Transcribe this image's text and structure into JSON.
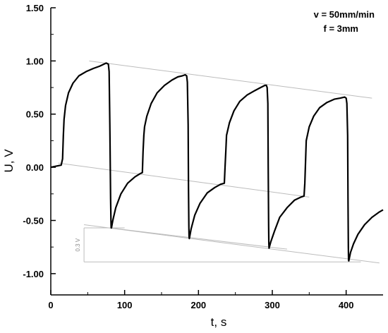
{
  "chart_data": {
    "type": "line",
    "xlabel": "t, s",
    "ylabel": "U, V",
    "xlim": [
      0,
      450
    ],
    "ylim": [
      -1.2,
      1.5
    ],
    "xticks": [
      0,
      100,
      200,
      300,
      400
    ],
    "yticks": [
      -1.0,
      -0.5,
      0.0,
      0.5,
      1.0,
      1.5
    ],
    "ytick_labels": [
      "-1.00",
      "-0.50",
      "0.00",
      "0.50",
      "1.00",
      "1.50"
    ],
    "grid": false,
    "annotations": {
      "parameters": [
        "v = 50mm/min",
        "f = 3mm"
      ],
      "drop_label": "0.3 V"
    },
    "series": [
      {
        "x": [
          0,
          14,
          16,
          17,
          18,
          20,
          24,
          30,
          38,
          48,
          58,
          66,
          72,
          75,
          78,
          79,
          80,
          81,
          81.5,
          81.8,
          82.2,
          84,
          88,
          95,
          104,
          114,
          121,
          124,
          125,
          126,
          127,
          130,
          136,
          144,
          154,
          164,
          172,
          178,
          182,
          184,
          185,
          186,
          186.5,
          187,
          187.3,
          187.6,
          190,
          195,
          202,
          212,
          222,
          230,
          235,
          236,
          237,
          238,
          242,
          248,
          256,
          266,
          276,
          284,
          290,
          292,
          293,
          294,
          294.5,
          295,
          295.3,
          295.6,
          298,
          303,
          310,
          320,
          330,
          339,
          343,
          344,
          345,
          346,
          350,
          356,
          364,
          374,
          384,
          392,
          398,
          400,
          401,
          402,
          402.5,
          403,
          403.3,
          403.6,
          406,
          410,
          416,
          425,
          435,
          445,
          450
        ],
        "y": [
          0.0,
          0.02,
          0.08,
          0.3,
          0.45,
          0.58,
          0.7,
          0.79,
          0.86,
          0.9,
          0.93,
          0.95,
          0.97,
          0.98,
          0.97,
          0.9,
          0.4,
          -0.3,
          -0.5,
          -0.57,
          -0.57,
          -0.5,
          -0.38,
          -0.25,
          -0.15,
          -0.09,
          -0.06,
          -0.05,
          0.15,
          0.3,
          0.38,
          0.48,
          0.6,
          0.7,
          0.77,
          0.82,
          0.85,
          0.86,
          0.87,
          0.86,
          0.8,
          0.4,
          -0.2,
          -0.55,
          -0.65,
          -0.67,
          -0.58,
          -0.45,
          -0.34,
          -0.24,
          -0.19,
          -0.16,
          -0.15,
          0.0,
          0.15,
          0.3,
          0.42,
          0.53,
          0.62,
          0.68,
          0.72,
          0.75,
          0.77,
          0.77,
          0.75,
          0.6,
          0.0,
          -0.55,
          -0.72,
          -0.76,
          -0.7,
          -0.6,
          -0.47,
          -0.38,
          -0.31,
          -0.28,
          -0.27,
          -0.15,
          0.05,
          0.25,
          0.38,
          0.48,
          0.56,
          0.61,
          0.64,
          0.65,
          0.66,
          0.65,
          0.6,
          0.3,
          -0.3,
          -0.75,
          -0.87,
          -0.88,
          -0.8,
          -0.72,
          -0.63,
          -0.54,
          -0.47,
          -0.42,
          -0.4
        ]
      }
    ],
    "guide_lines": [
      {
        "x": [
          52,
          435
        ],
        "y": [
          1.0,
          0.65
        ]
      },
      {
        "x": [
          10,
          350
        ],
        "y": [
          0.04,
          -0.28
        ]
      },
      {
        "x": [
          80,
          320
        ],
        "y": [
          -0.57,
          -0.77
        ]
      },
      {
        "x": [
          45,
          445
        ],
        "y": [
          -0.54,
          -0.9
        ]
      },
      {
        "x": [
          45,
          100
        ],
        "y": [
          -0.57,
          -0.57
        ]
      },
      {
        "x": [
          45,
          420
        ],
        "y": [
          -0.89,
          -0.89
        ]
      }
    ]
  }
}
